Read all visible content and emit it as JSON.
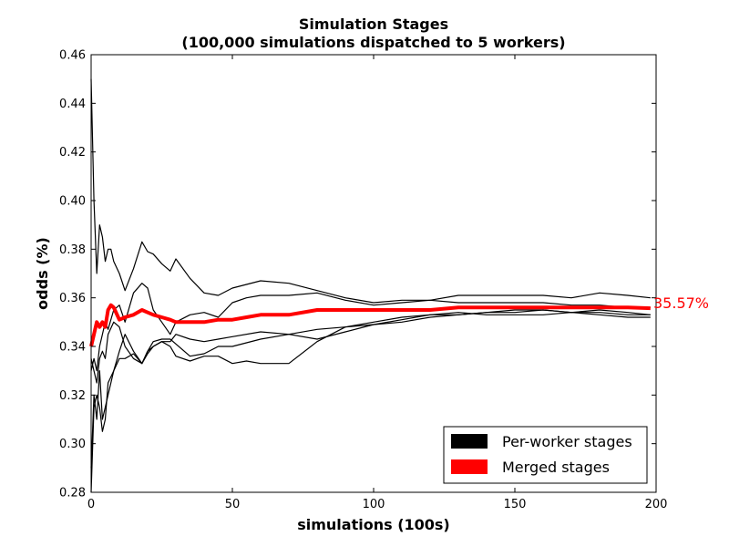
{
  "chart_data": {
    "type": "line",
    "title": "Simulation Stages",
    "subtitle": "(100,000 simulations dispatched to 5 workers)",
    "xlabel": "simulations (100s)",
    "ylabel": "odds (%)",
    "xlim": [
      0,
      200
    ],
    "ylim": [
      0.28,
      0.46
    ],
    "xticks": [
      0,
      50,
      100,
      150,
      200
    ],
    "yticks": [
      0.28,
      0.3,
      0.32,
      0.34,
      0.36,
      0.38,
      0.4,
      0.42,
      0.44,
      0.46
    ],
    "xtick_labels": [
      "0",
      "50",
      "100",
      "150",
      "200"
    ],
    "ytick_labels": [
      "0.28",
      "0.30",
      "0.32",
      "0.34",
      "0.36",
      "0.38",
      "0.40",
      "0.42",
      "0.44",
      "0.46"
    ],
    "grid": false,
    "legend": {
      "placement": "lower-right",
      "entries": [
        {
          "label": "Per-worker stages",
          "color": "#000000"
        },
        {
          "label": "Merged stages",
          "color": "#ff0000"
        }
      ]
    },
    "annotation": {
      "text": "35.57%",
      "x": 200,
      "y": 0.3557,
      "color": "#ff0000"
    },
    "series": [
      {
        "group": "Per-worker stages",
        "color": "#000000",
        "x": [
          0,
          1,
          2,
          3,
          4,
          5,
          6,
          7,
          8,
          10,
          12,
          15,
          18,
          20,
          22,
          25,
          28,
          30,
          35,
          40,
          45,
          50,
          60,
          70,
          80,
          90,
          100,
          110,
          120,
          130,
          140,
          150,
          160,
          170,
          180,
          190,
          198
        ],
        "y": [
          0.45,
          0.4,
          0.37,
          0.39,
          0.385,
          0.375,
          0.38,
          0.38,
          0.375,
          0.37,
          0.363,
          0.372,
          0.383,
          0.379,
          0.378,
          0.374,
          0.371,
          0.376,
          0.368,
          0.362,
          0.361,
          0.364,
          0.367,
          0.366,
          0.363,
          0.36,
          0.358,
          0.359,
          0.359,
          0.361,
          0.361,
          0.361,
          0.361,
          0.36,
          0.362,
          0.361,
          0.36
        ]
      },
      {
        "group": "Per-worker stages",
        "color": "#000000",
        "x": [
          0,
          1,
          2,
          3,
          4,
          5,
          6,
          8,
          10,
          12,
          15,
          18,
          20,
          22,
          25,
          28,
          30,
          35,
          40,
          45,
          50,
          55,
          60,
          70,
          80,
          90,
          100,
          110,
          120,
          130,
          140,
          150,
          160,
          170,
          180,
          190,
          198
        ],
        "y": [
          0.33,
          0.335,
          0.33,
          0.34,
          0.345,
          0.35,
          0.347,
          0.355,
          0.357,
          0.35,
          0.362,
          0.366,
          0.364,
          0.355,
          0.35,
          0.345,
          0.35,
          0.353,
          0.354,
          0.352,
          0.358,
          0.36,
          0.361,
          0.361,
          0.362,
          0.359,
          0.357,
          0.358,
          0.359,
          0.358,
          0.358,
          0.358,
          0.358,
          0.357,
          0.357,
          0.356,
          0.356
        ]
      },
      {
        "group": "Per-worker stages",
        "color": "#000000",
        "x": [
          0,
          1,
          2,
          3,
          4,
          5,
          6,
          8,
          10,
          12,
          15,
          18,
          20,
          22,
          25,
          28,
          30,
          35,
          40,
          45,
          50,
          60,
          70,
          80,
          90,
          100,
          110,
          120,
          130,
          140,
          150,
          160,
          170,
          180,
          190,
          198
        ],
        "y": [
          0.29,
          0.32,
          0.31,
          0.33,
          0.31,
          0.315,
          0.32,
          0.33,
          0.335,
          0.335,
          0.337,
          0.333,
          0.338,
          0.342,
          0.343,
          0.343,
          0.341,
          0.336,
          0.337,
          0.34,
          0.34,
          0.343,
          0.345,
          0.347,
          0.348,
          0.349,
          0.35,
          0.352,
          0.353,
          0.354,
          0.355,
          0.355,
          0.354,
          0.355,
          0.354,
          0.353
        ]
      },
      {
        "group": "Per-worker stages",
        "color": "#000000",
        "x": [
          0,
          1,
          2,
          3,
          4,
          5,
          6,
          8,
          10,
          12,
          15,
          18,
          20,
          22,
          25,
          28,
          30,
          35,
          40,
          45,
          50,
          60,
          70,
          80,
          90,
          100,
          110,
          120,
          130,
          140,
          150,
          160,
          170,
          180,
          190,
          198
        ],
        "y": [
          0.28,
          0.315,
          0.32,
          0.315,
          0.305,
          0.31,
          0.325,
          0.33,
          0.338,
          0.345,
          0.338,
          0.333,
          0.337,
          0.34,
          0.342,
          0.342,
          0.345,
          0.343,
          0.342,
          0.343,
          0.344,
          0.346,
          0.345,
          0.343,
          0.346,
          0.349,
          0.351,
          0.353,
          0.353,
          0.354,
          0.354,
          0.355,
          0.354,
          0.354,
          0.353,
          0.353
        ]
      },
      {
        "group": "Per-worker stages",
        "color": "#000000",
        "x": [
          0,
          1,
          2,
          3,
          4,
          5,
          6,
          8,
          10,
          12,
          15,
          18,
          20,
          22,
          25,
          28,
          30,
          35,
          40,
          45,
          50,
          55,
          60,
          70,
          80,
          90,
          100,
          110,
          120,
          130,
          140,
          150,
          160,
          170,
          180,
          190,
          198
        ],
        "y": [
          0.335,
          0.33,
          0.325,
          0.335,
          0.338,
          0.335,
          0.345,
          0.35,
          0.348,
          0.34,
          0.335,
          0.333,
          0.338,
          0.34,
          0.342,
          0.34,
          0.336,
          0.334,
          0.336,
          0.336,
          0.333,
          0.334,
          0.333,
          0.333,
          0.342,
          0.348,
          0.35,
          0.352,
          0.353,
          0.354,
          0.353,
          0.353,
          0.353,
          0.354,
          0.353,
          0.352,
          0.352
        ]
      },
      {
        "group": "Merged stages",
        "color": "#ff0000",
        "x": [
          0,
          1,
          2,
          3,
          4,
          5,
          6,
          7,
          8,
          10,
          12,
          15,
          18,
          20,
          22,
          25,
          28,
          30,
          35,
          40,
          45,
          50,
          55,
          60,
          65,
          70,
          80,
          90,
          100,
          110,
          120,
          130,
          140,
          150,
          160,
          170,
          180,
          190,
          198
        ],
        "y": [
          0.34,
          0.345,
          0.35,
          0.348,
          0.35,
          0.348,
          0.355,
          0.357,
          0.356,
          0.351,
          0.352,
          0.353,
          0.355,
          0.354,
          0.353,
          0.352,
          0.351,
          0.35,
          0.35,
          0.35,
          0.351,
          0.351,
          0.352,
          0.353,
          0.353,
          0.353,
          0.355,
          0.355,
          0.355,
          0.355,
          0.355,
          0.356,
          0.356,
          0.356,
          0.356,
          0.356,
          0.356,
          0.356,
          0.3557
        ]
      }
    ]
  }
}
